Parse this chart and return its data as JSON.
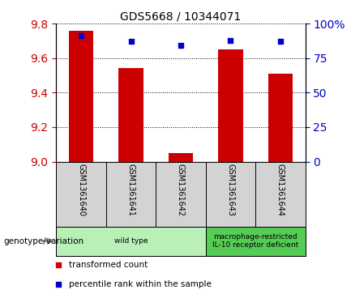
{
  "title": "GDS5668 / 10344071",
  "categories": [
    "GSM1361640",
    "GSM1361641",
    "GSM1361642",
    "GSM1361643",
    "GSM1361644"
  ],
  "bar_values": [
    9.76,
    9.54,
    9.05,
    9.65,
    9.51
  ],
  "percentile_values": [
    91,
    87,
    84,
    88,
    87
  ],
  "bar_color": "#cc0000",
  "percentile_color": "#0000cc",
  "ylim_left": [
    9.0,
    9.8
  ],
  "yticks_left": [
    9.0,
    9.2,
    9.4,
    9.6,
    9.8
  ],
  "ylim_right": [
    0,
    100
  ],
  "yticks_right": [
    0,
    25,
    50,
    75,
    100
  ],
  "ytick_labels_right": [
    "0",
    "25",
    "50",
    "75",
    "100%"
  ],
  "grid_color": "black",
  "background_color": "#ffffff",
  "plot_bg_color": "#ffffff",
  "label_bg_color": "#d3d3d3",
  "genotype_groups": [
    {
      "label": "wild type",
      "indices": [
        0,
        1,
        2
      ],
      "color": "#b8f0b8"
    },
    {
      "label": "macrophage-restricted\nIL-10 receptor deficient",
      "indices": [
        3,
        4
      ],
      "color": "#55cc55"
    }
  ],
  "legend_items": [
    {
      "label": "transformed count",
      "color": "#cc0000",
      "marker": "s"
    },
    {
      "label": "percentile rank within the sample",
      "color": "#0000cc",
      "marker": "s"
    }
  ],
  "genotype_label": "genotype/variation"
}
